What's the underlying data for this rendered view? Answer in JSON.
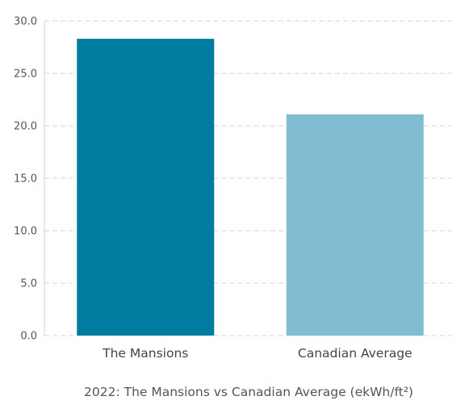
{
  "chart_data": {
    "type": "bar",
    "title": "2022: The Mansions vs Canadian Average (ekWh/ft²)",
    "xlabel": "",
    "ylabel": "",
    "categories": [
      "The Mansions",
      "Canadian Average"
    ],
    "values": [
      28.3,
      21.1
    ],
    "colors": [
      "#007ca0",
      "#80bdd1"
    ],
    "ylim": [
      0,
      30
    ],
    "yticks": [
      0,
      5,
      10,
      15,
      20,
      25,
      30
    ],
    "ytick_labels": [
      "0.0",
      "5.0",
      "10.0",
      "15.0",
      "20.0",
      "25.0",
      "30.0"
    ],
    "grid": true,
    "legend": "none"
  }
}
